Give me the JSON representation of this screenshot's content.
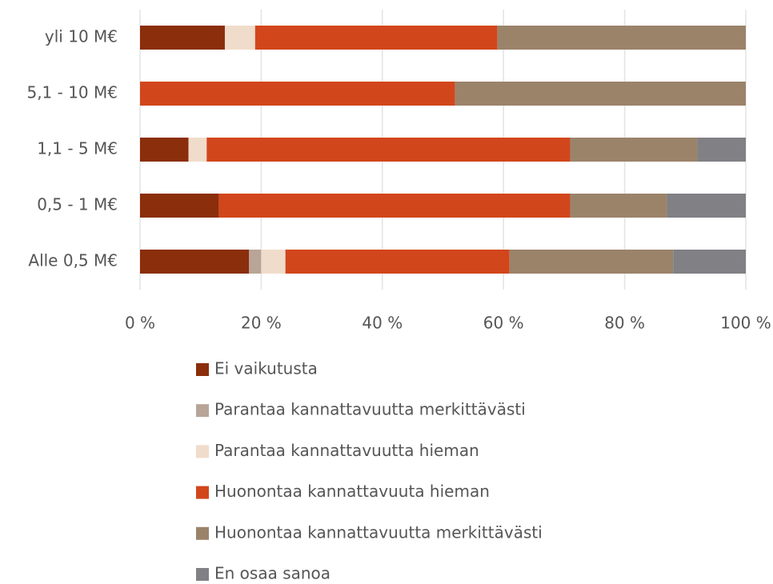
{
  "chart_data": {
    "type": "stacked-bar-horizontal",
    "categories": [
      "yli 10 M€",
      "5,1 - 10 M€",
      "1,1 - 5 M€",
      "0,5 - 1 M€",
      "Alle 0,5 M€"
    ],
    "series": [
      {
        "name": "Ei vaikutusta",
        "color": "#8b2e0b",
        "values": [
          14,
          0,
          8,
          13,
          18
        ]
      },
      {
        "name": "Parantaa kannattavuutta merkittävästi",
        "color": "#b8a598",
        "values": [
          0,
          0,
          0,
          0,
          2
        ]
      },
      {
        "name": "Parantaa kannattavuutta hieman",
        "color": "#f0dccb",
        "values": [
          5,
          0,
          3,
          0,
          4
        ]
      },
      {
        "name": "Huonontaa kannattavuuta hieman",
        "color": "#d2461c",
        "values": [
          40,
          52,
          60,
          58,
          37
        ]
      },
      {
        "name": "Huonontaa kannattavuutta merkittävästi",
        "color": "#9b836a",
        "values": [
          41,
          48,
          21,
          16,
          27
        ]
      },
      {
        "name": "En osaa sanoa",
        "color": "#808085",
        "values": [
          0,
          0,
          8,
          13,
          12
        ]
      }
    ],
    "xlim": [
      0,
      100
    ],
    "xticks": [
      {
        "value": 0,
        "label": "0 %"
      },
      {
        "value": 20,
        "label": "20 %"
      },
      {
        "value": 40,
        "label": "40 %"
      },
      {
        "value": 60,
        "label": "60 %"
      },
      {
        "value": 80,
        "label": "80 %"
      },
      {
        "value": 100,
        "label": "100 %"
      }
    ],
    "grid": true,
    "legend": "bottom"
  }
}
